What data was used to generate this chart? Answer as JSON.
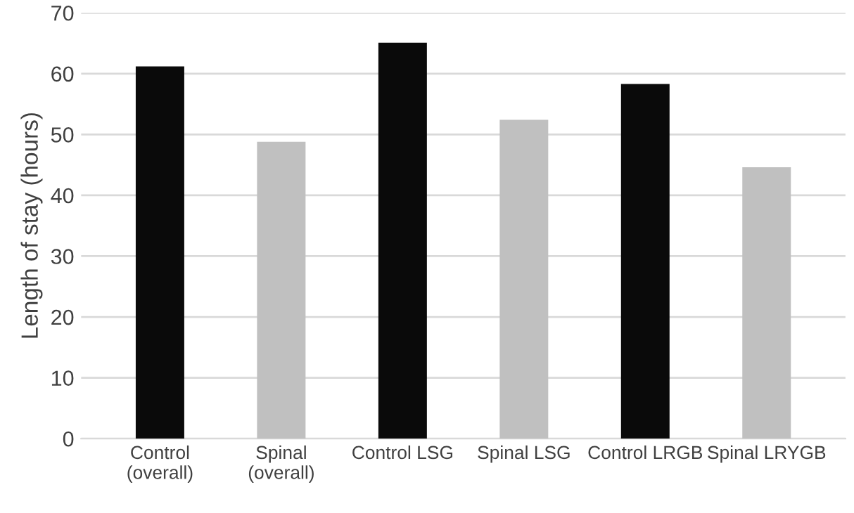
{
  "chart_data": {
    "type": "bar",
    "ylabel": "Length of stay (hours)",
    "categories": [
      "Control\n(overall)",
      "Spinal\n(overall)",
      "Control LSG",
      "Spinal LSG",
      "Control LRGB",
      "Spinal LRYGB"
    ],
    "values": [
      61.2,
      48.8,
      65.1,
      52.4,
      58.3,
      44.6
    ],
    "colors": [
      "#0a0a0a",
      "#c0c0c0",
      "#0a0a0a",
      "#c0c0c0",
      "#0a0a0a",
      "#c0c0c0"
    ],
    "ylim": [
      0,
      70
    ],
    "yticks": [
      0,
      10,
      20,
      30,
      40,
      50,
      60,
      70
    ],
    "grid": "y",
    "legend": false
  }
}
